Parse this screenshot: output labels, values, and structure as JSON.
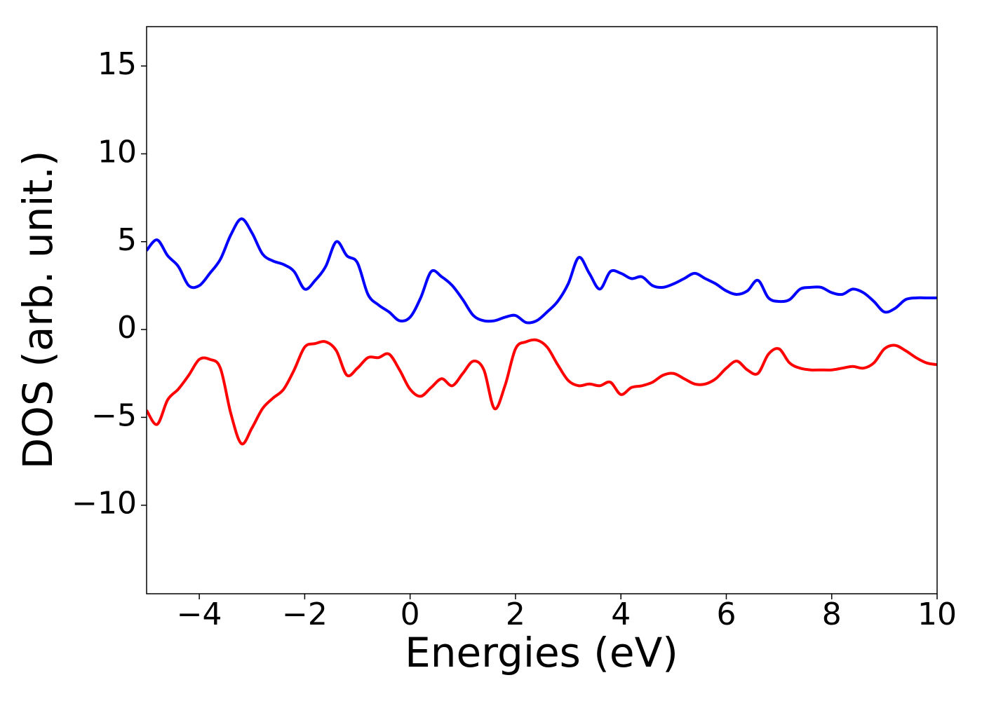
{
  "chart_data": {
    "type": "line",
    "xlabel": "Energies (eV)",
    "ylabel": "DOS (arb. unit.)",
    "x": [
      -5,
      -4.8,
      -4.6,
      -4.4,
      -4.2,
      -4.0,
      -3.8,
      -3.6,
      -3.4,
      -3.2,
      -3.0,
      -2.8,
      -2.6,
      -2.4,
      -2.2,
      -2.0,
      -1.8,
      -1.6,
      -1.4,
      -1.2,
      -1.0,
      -0.8,
      -0.6,
      -0.4,
      -0.2,
      0,
      0.2,
      0.4,
      0.6,
      0.8,
      1.0,
      1.2,
      1.4,
      1.6,
      1.8,
      2.0,
      2.2,
      2.4,
      2.6,
      2.8,
      3.0,
      3.2,
      3.4,
      3.6,
      3.8,
      4.0,
      4.2,
      4.4,
      4.6,
      4.8,
      5.0,
      5.2,
      5.4,
      5.6,
      5.8,
      6.0,
      6.2,
      6.4,
      6.6,
      6.8,
      7.0,
      7.2,
      7.4,
      7.6,
      7.8,
      8.0,
      8.2,
      8.4,
      8.6,
      8.8,
      9.0,
      9.2,
      9.4,
      9.6,
      9.8,
      10.0
    ],
    "series": [
      {
        "color": "#0000ff",
        "values": [
          4.5,
          5.1,
          4.2,
          3.6,
          2.5,
          2.5,
          3.2,
          4.0,
          5.4,
          6.3,
          5.5,
          4.3,
          3.9,
          3.7,
          3.3,
          2.3,
          2.8,
          3.6,
          5.0,
          4.2,
          3.8,
          2.0,
          1.4,
          1.0,
          0.5,
          0.7,
          1.8,
          3.3,
          3.0,
          2.5,
          1.7,
          0.8,
          0.5,
          0.5,
          0.7,
          0.8,
          0.4,
          0.5,
          1.0,
          1.6,
          2.6,
          4.1,
          3.2,
          2.3,
          3.3,
          3.2,
          2.9,
          3.0,
          2.5,
          2.4,
          2.6,
          2.9,
          3.2,
          2.9,
          2.6,
          2.2,
          2.0,
          2.2,
          2.8,
          1.8,
          1.6,
          1.7,
          2.3,
          2.4,
          2.4,
          2.1,
          2.0,
          2.3,
          2.1,
          1.6,
          1.0,
          1.2,
          1.7,
          1.8,
          1.8,
          1.8
        ]
      },
      {
        "color": "#ff0000",
        "values": [
          -4.6,
          -5.4,
          -4.0,
          -3.4,
          -2.6,
          -1.7,
          -1.7,
          -2.2,
          -4.8,
          -6.5,
          -5.6,
          -4.5,
          -3.9,
          -3.4,
          -2.3,
          -1.0,
          -0.8,
          -0.7,
          -1.2,
          -2.6,
          -2.2,
          -1.6,
          -1.6,
          -1.4,
          -2.3,
          -3.4,
          -3.8,
          -3.3,
          -2.8,
          -3.2,
          -2.5,
          -1.8,
          -2.3,
          -4.5,
          -3.2,
          -1.1,
          -0.7,
          -0.6,
          -1.0,
          -2.0,
          -2.9,
          -3.2,
          -3.1,
          -3.2,
          -3.0,
          -3.7,
          -3.3,
          -3.2,
          -3.0,
          -2.6,
          -2.5,
          -2.8,
          -3.1,
          -3.1,
          -2.8,
          -2.2,
          -1.8,
          -2.3,
          -2.5,
          -1.4,
          -1.1,
          -1.9,
          -2.2,
          -2.3,
          -2.3,
          -2.3,
          -2.2,
          -2.1,
          -2.2,
          -1.9,
          -1.1,
          -0.9,
          -1.2,
          -1.6,
          -1.9,
          -2.0
        ]
      }
    ],
    "xlim": [
      -5,
      10
    ],
    "xticks": [
      {
        "value": -4,
        "label": "−4"
      },
      {
        "value": -2,
        "label": "−2"
      },
      0,
      2,
      4,
      6,
      8,
      10
    ],
    "ylim": [
      -15.04,
      17.24
    ],
    "yticks": [
      {
        "value": -10,
        "label": "−10"
      },
      {
        "value": -5,
        "label": "−5"
      },
      0,
      5,
      10,
      15
    ]
  }
}
